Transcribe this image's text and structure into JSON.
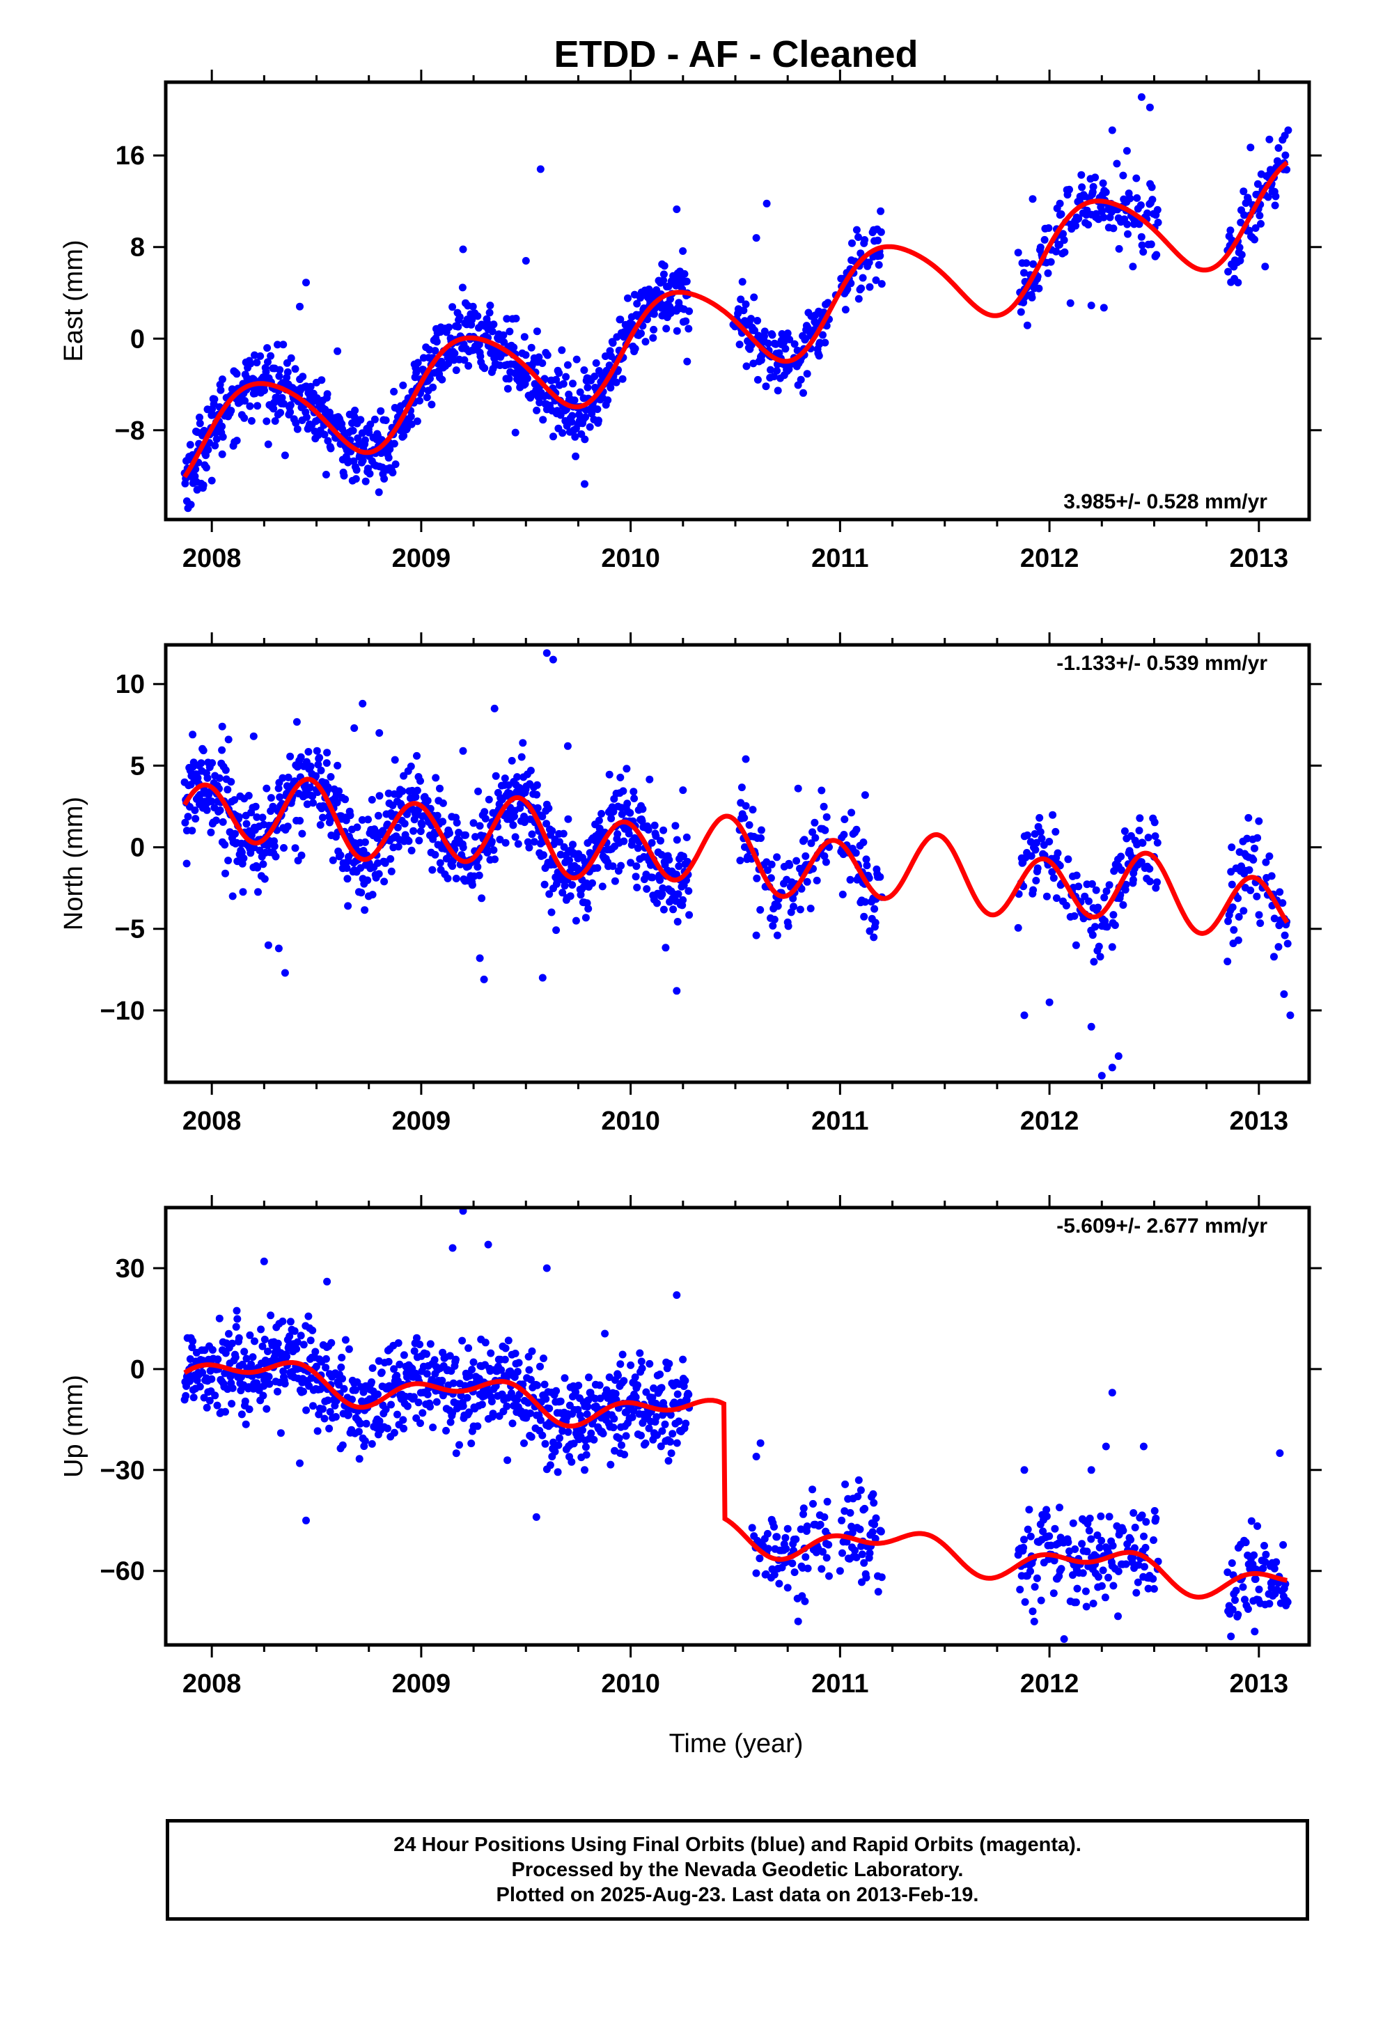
{
  "title": "ETDD  - AF - Cleaned",
  "xlabel": "Time (year)",
  "caption": {
    "line1": "24 Hour Positions Using Final Orbits (blue) and Rapid Orbits (magenta).",
    "line2": "Processed by the Nevada Geodetic Laboratory.",
    "line3": "Plotted on 2025-Aug-23. Last data on 2013-Feb-19."
  },
  "colors": {
    "points": "#0000ff",
    "model": "#ff0000",
    "axes": "#000000"
  },
  "chart_data": [
    {
      "type": "scatter",
      "ylabel": "East (mm)",
      "rate": "3.985+/- 0.528 mm/yr",
      "rate_position": "bottom-right",
      "xlim": [
        2007.78,
        2013.24
      ],
      "ylim": [
        -15.8,
        22.4
      ],
      "x_ticks": [
        2008,
        2009,
        2010,
        2011,
        2012,
        2013
      ],
      "y_ticks": [
        16,
        8,
        0,
        -8
      ],
      "y_tick_labels": [
        "16",
        "8",
        "0",
        "−8"
      ],
      "grid": false,
      "gaps": [
        [
          2010.28,
          2010.48
        ],
        [
          2011.2,
          2011.85
        ],
        [
          2012.52,
          2012.85
        ]
      ],
      "trend": {
        "a": -0.56,
        "b": 3.985,
        "t0": 2010
      },
      "seasonal": {
        "c1": 0.3,
        "s1": 4.0,
        "c2": 0.4,
        "s2": 0.3
      },
      "noise": 1.5,
      "points": [
        [
          2007.9,
          -14.5
        ],
        [
          2007.93,
          -13.2
        ],
        [
          2007.96,
          -12.8
        ],
        [
          2008.0,
          -12.4
        ],
        [
          2008.05,
          -10.1
        ],
        [
          2008.12,
          -8.9
        ],
        [
          2008.2,
          -4.8
        ],
        [
          2008.3,
          -2.6
        ],
        [
          2008.35,
          -10.2
        ],
        [
          2008.42,
          2.8
        ],
        [
          2008.45,
          4.9
        ],
        [
          2008.6,
          -1.1
        ],
        [
          2008.68,
          -6.8
        ],
        [
          2008.75,
          -8.2
        ],
        [
          2008.85,
          -11.3
        ],
        [
          2008.9,
          -8.0
        ],
        [
          2009.2,
          7.8
        ],
        [
          2009.32,
          0.8
        ],
        [
          2009.45,
          -8.2
        ],
        [
          2009.5,
          6.8
        ],
        [
          2009.57,
          14.8
        ],
        [
          2009.7,
          -2.3
        ],
        [
          2009.78,
          -12.7
        ],
        [
          2009.85,
          -4.3
        ],
        [
          2010.15,
          6.5
        ],
        [
          2010.22,
          11.3
        ],
        [
          2010.27,
          -2.0
        ],
        [
          2010.55,
          3.0
        ],
        [
          2010.6,
          8.8
        ],
        [
          2010.65,
          11.8
        ],
        [
          2010.72,
          -0.5
        ],
        [
          2010.77,
          -2.2
        ],
        [
          2010.9,
          -1.5
        ],
        [
          2010.98,
          3.8
        ],
        [
          2011.08,
          9.5
        ],
        [
          2011.18,
          7.2
        ],
        [
          2011.88,
          3.6
        ],
        [
          2011.92,
          12.2
        ],
        [
          2012.05,
          11.8
        ],
        [
          2012.1,
          3.1
        ],
        [
          2012.2,
          2.9
        ],
        [
          2012.26,
          2.7
        ],
        [
          2012.3,
          18.2
        ],
        [
          2012.37,
          16.4
        ],
        [
          2012.44,
          21.1
        ],
        [
          2012.48,
          20.2
        ],
        [
          2012.9,
          4.9
        ],
        [
          2012.96,
          16.7
        ],
        [
          2013.03,
          6.3
        ],
        [
          2013.05,
          17.4
        ],
        [
          2013.14,
          18.2
        ]
      ]
    },
    {
      "type": "scatter",
      "ylabel": "North (mm)",
      "rate": "-1.133+/- 0.539 mm/yr",
      "rate_position": "top-right",
      "xlim": [
        2007.78,
        2013.24
      ],
      "ylim": [
        -14.4,
        12.4
      ],
      "x_ticks": [
        2008,
        2009,
        2010,
        2011,
        2012,
        2013
      ],
      "y_ticks": [
        10,
        5,
        0,
        -5,
        -10
      ],
      "y_tick_labels": [
        "10",
        "5",
        "0",
        "−5",
        "−10"
      ],
      "grid": false,
      "gaps": [
        [
          2010.28,
          2010.52
        ],
        [
          2011.2,
          2011.85
        ],
        [
          2012.52,
          2012.85
        ]
      ],
      "trend": {
        "a": 0.0,
        "b": -1.133,
        "t0": 2010
      },
      "seasonal": {
        "c1": -0.4,
        "s1": 0.3,
        "c2": 1.8,
        "s2": -0.8
      },
      "noise": 1.4,
      "points": [
        [
          2007.88,
          -1.0
        ],
        [
          2007.94,
          5.0
        ],
        [
          2008.05,
          7.4
        ],
        [
          2008.08,
          6.6
        ],
        [
          2008.1,
          -3.0
        ],
        [
          2008.2,
          6.8
        ],
        [
          2008.27,
          -6.0
        ],
        [
          2008.32,
          -6.2
        ],
        [
          2008.35,
          -7.7
        ],
        [
          2008.55,
          5.8
        ],
        [
          2008.6,
          5.0
        ],
        [
          2008.65,
          -3.6
        ],
        [
          2008.68,
          7.3
        ],
        [
          2008.72,
          8.8
        ],
        [
          2008.8,
          7.0
        ],
        [
          2009.2,
          5.9
        ],
        [
          2009.28,
          -6.8
        ],
        [
          2009.3,
          -8.1
        ],
        [
          2009.35,
          8.5
        ],
        [
          2009.58,
          -8.0
        ],
        [
          2009.6,
          11.9
        ],
        [
          2009.63,
          11.5
        ],
        [
          2009.7,
          6.2
        ],
        [
          2010.22,
          -8.8
        ],
        [
          2010.25,
          3.5
        ],
        [
          2010.55,
          5.4
        ],
        [
          2010.6,
          -5.4
        ],
        [
          2010.75,
          -4.6
        ],
        [
          2010.8,
          3.6
        ],
        [
          2011.12,
          3.2
        ],
        [
          2011.88,
          -10.3
        ],
        [
          2012.0,
          -9.5
        ],
        [
          2012.2,
          -11.0
        ],
        [
          2012.25,
          -14.0
        ],
        [
          2012.3,
          -13.5
        ],
        [
          2012.33,
          -12.8
        ],
        [
          2012.4,
          -2.0
        ],
        [
          2012.48,
          -2.1
        ],
        [
          2012.85,
          -7.0
        ],
        [
          2012.87,
          0.0
        ],
        [
          2012.95,
          1.8
        ],
        [
          2013.0,
          1.6
        ],
        [
          2013.12,
          -9.0
        ],
        [
          2013.15,
          -10.3
        ]
      ]
    },
    {
      "type": "scatter",
      "ylabel": "Up (mm)",
      "rate": "-5.609+/- 2.677 mm/yr",
      "rate_position": "top-right",
      "xlim": [
        2007.78,
        2013.24
      ],
      "ylim": [
        -82,
        48
      ],
      "x_ticks": [
        2008,
        2009,
        2010,
        2011,
        2012,
        2013
      ],
      "y_ticks": [
        30,
        0,
        -30,
        -60
      ],
      "y_tick_labels": [
        "30",
        "0",
        "−30",
        "−60"
      ],
      "grid": false,
      "gaps": [
        [
          2010.28,
          2010.58
        ],
        [
          2011.2,
          2011.85
        ],
        [
          2012.52,
          2012.85
        ]
      ],
      "trend": {
        "a": -12.0,
        "b": -5.609,
        "t0": 2010,
        "offset_after": 2010.45,
        "offset": -34
      },
      "seasonal": {
        "c1": 0.0,
        "s1": 4.0,
        "c2": 2.0,
        "s2": -2.0
      },
      "noise": 7.0,
      "points": [
        [
          2008.25,
          32.0
        ],
        [
          2008.33,
          -19.0
        ],
        [
          2008.42,
          -28.0
        ],
        [
          2008.45,
          -45.0
        ],
        [
          2008.55,
          26.0
        ],
        [
          2008.68,
          -12.0
        ],
        [
          2009.15,
          36.0
        ],
        [
          2009.2,
          47.0
        ],
        [
          2009.25,
          -17.0
        ],
        [
          2009.32,
          37.0
        ],
        [
          2009.55,
          -44.0
        ],
        [
          2009.6,
          30.0
        ],
        [
          2009.78,
          -30.0
        ],
        [
          2009.95,
          -25.0
        ],
        [
          2010.22,
          22.0
        ],
        [
          2010.6,
          -26.0
        ],
        [
          2010.62,
          -22.0
        ],
        [
          2010.8,
          -75.0
        ],
        [
          2010.75,
          -65.0
        ],
        [
          2011.0,
          -60.0
        ],
        [
          2011.1,
          -36.0
        ],
        [
          2011.15,
          -38.0
        ],
        [
          2011.92,
          -72.0
        ],
        [
          2011.88,
          -30.0
        ],
        [
          2012.05,
          -60.0
        ],
        [
          2012.2,
          -30.0
        ],
        [
          2012.3,
          -7.0
        ],
        [
          2012.27,
          -23.0
        ],
        [
          2012.45,
          -23.0
        ],
        [
          2012.9,
          -73.0
        ],
        [
          2012.92,
          -62.0
        ],
        [
          2012.98,
          -78.0
        ],
        [
          2013.03,
          -70.0
        ],
        [
          2013.06,
          -65.0
        ],
        [
          2013.1,
          -25.0
        ]
      ]
    }
  ]
}
